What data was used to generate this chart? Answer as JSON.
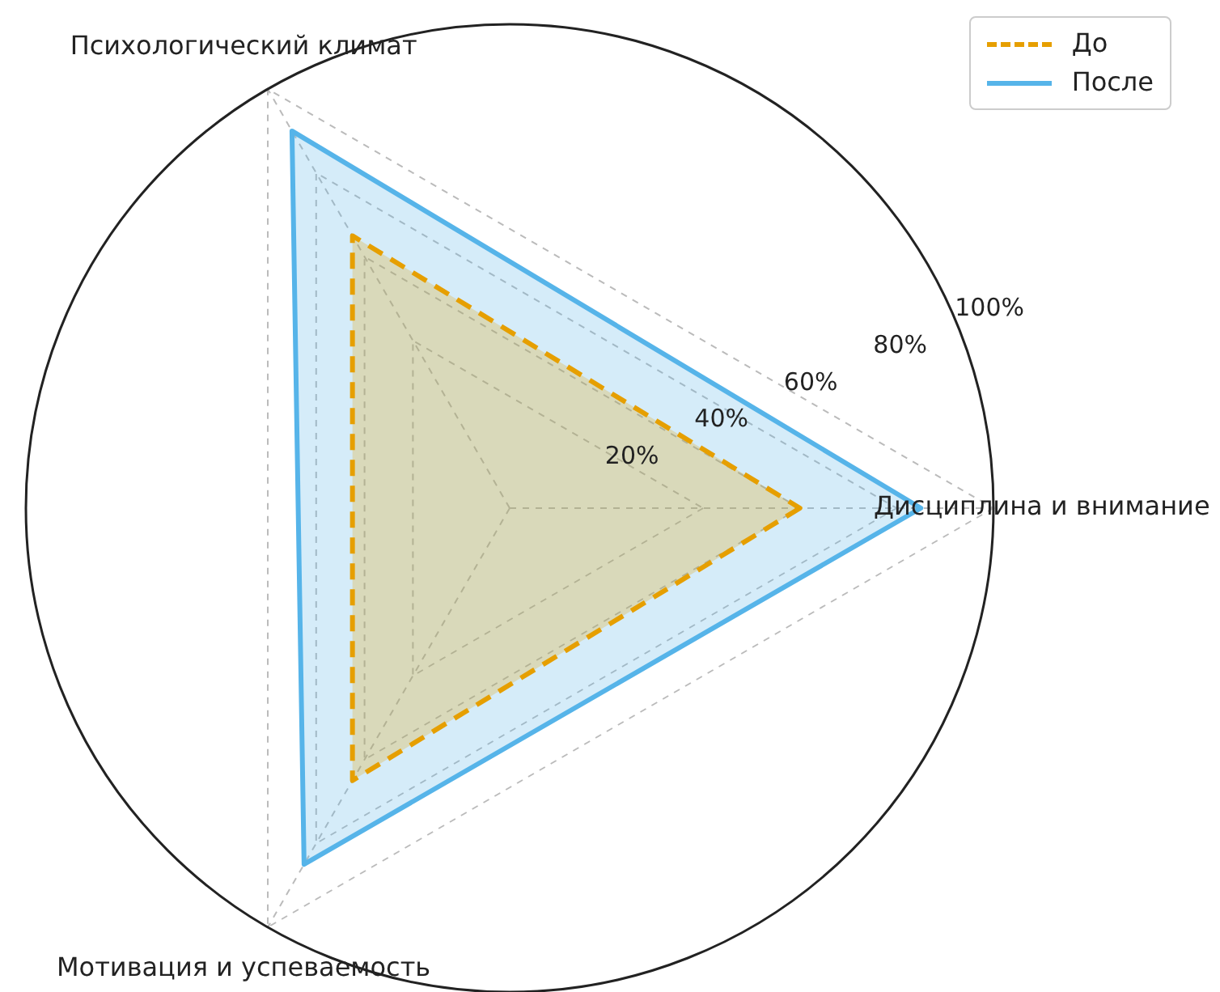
{
  "chart_data": {
    "type": "radar",
    "categories": [
      "Дисциплина и внимание",
      "Мотивация и успеваемость",
      "Психологический климат"
    ],
    "series": [
      {
        "name": "До",
        "color": "#e69f00",
        "values": [
          60,
          65,
          65
        ],
        "line_style": "dashed"
      },
      {
        "name": "После",
        "color": "#56b4e9",
        "values": [
          85,
          85,
          90
        ],
        "line_style": "solid"
      }
    ],
    "ylim": [
      0,
      100
    ],
    "yticks": [
      {
        "value": 20,
        "label": "20%"
      },
      {
        "value": 40,
        "label": "40%"
      },
      {
        "value": 60,
        "label": "60%"
      },
      {
        "value": 80,
        "label": "80%"
      },
      {
        "value": 100,
        "label": "100%"
      }
    ],
    "grid": true,
    "legend": "top right",
    "marker": "none"
  }
}
